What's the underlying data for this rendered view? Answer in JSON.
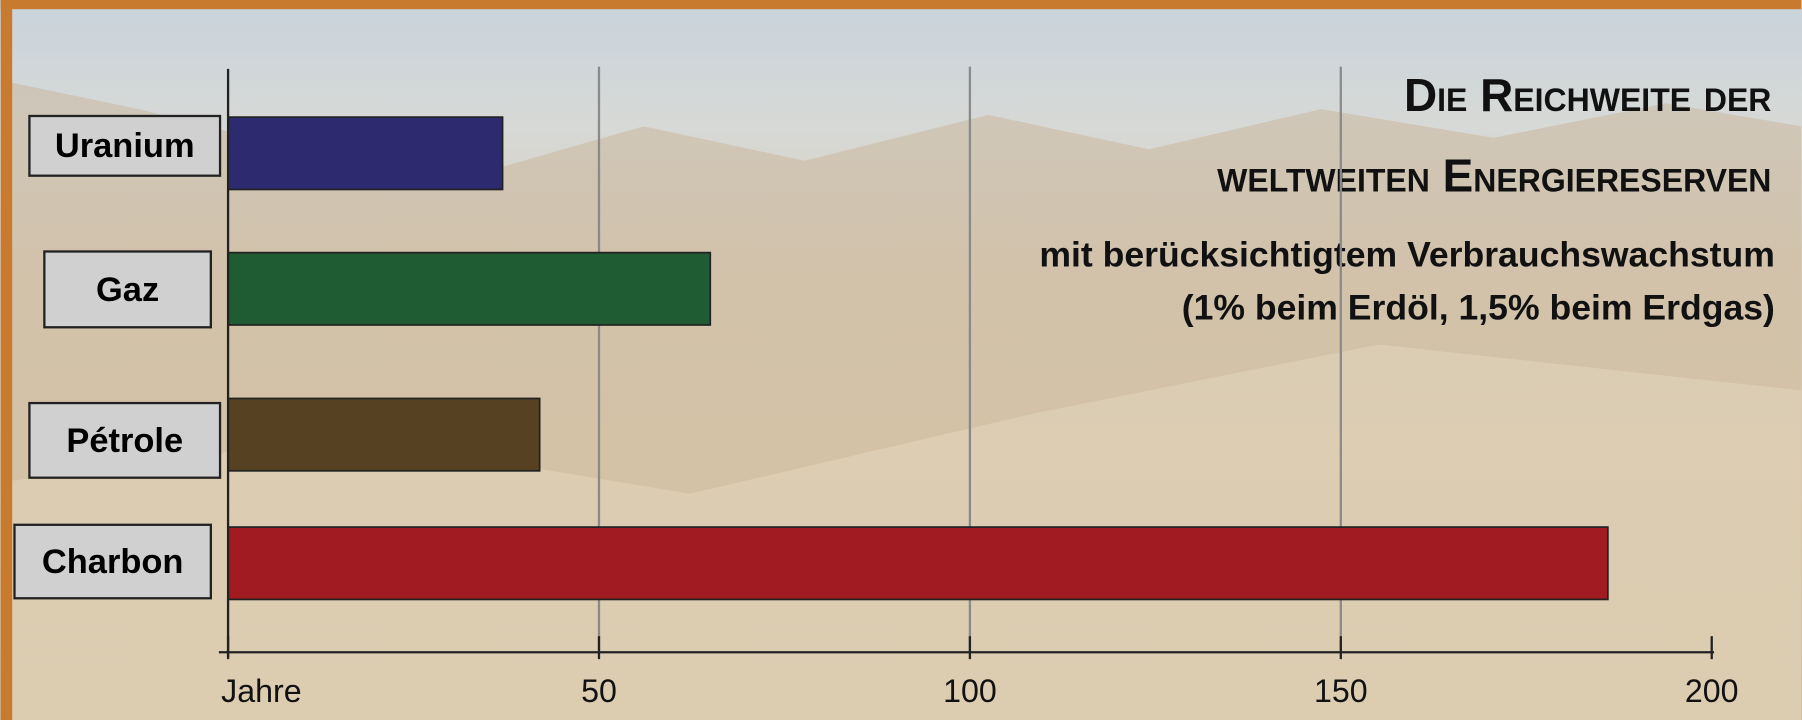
{
  "chart_data": {
    "type": "bar",
    "orientation": "horizontal",
    "title": [
      "Die Reichweite der",
      "weltweiten Energiereserven"
    ],
    "subtitle": [
      "mit berücksichtigtem  Verbrauchswachstum",
      "(1% beim Erdöl, 1,5% beim Erdgas)"
    ],
    "categories": [
      "Uranium",
      "Gaz",
      "Pétrole",
      "Charbon"
    ],
    "values": [
      37,
      65,
      42,
      186
    ],
    "colors": [
      "#2e2a70",
      "#1f5c33",
      "#564222",
      "#a11b22"
    ],
    "xlim": [
      0,
      200
    ],
    "xticks": [
      {
        "value": 0,
        "label": "Jahre"
      },
      50,
      100,
      150,
      200
    ],
    "grid": true
  }
}
